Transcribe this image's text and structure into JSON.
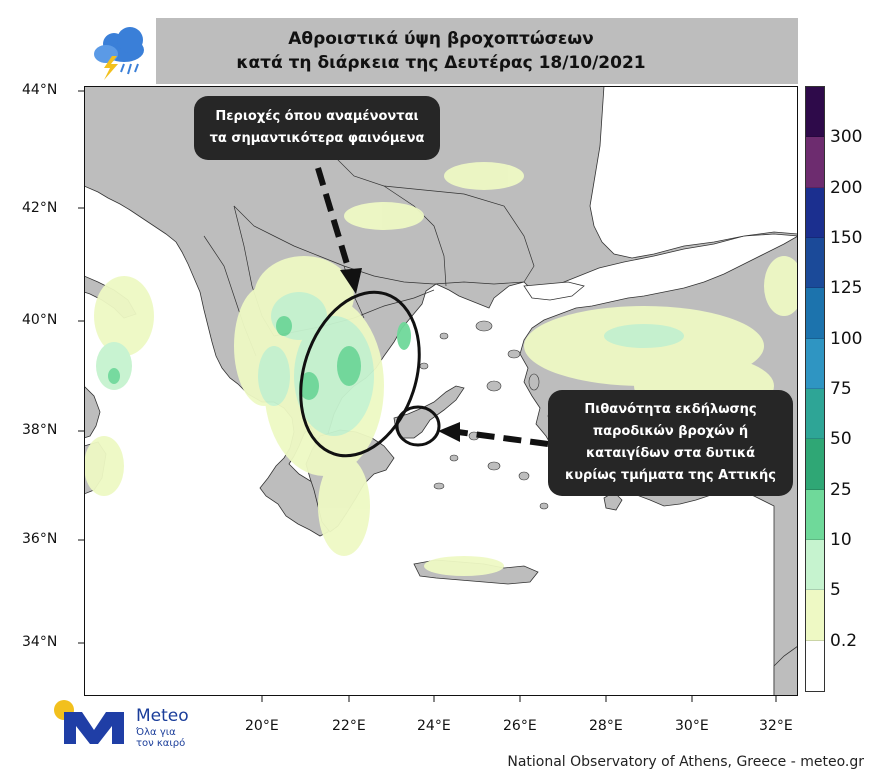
{
  "header": {
    "title_line1": "Αθροιστικά ύψη βροχοπτώσεων",
    "title_line2": "κατά τη διάρκεια της Δευτέρας 18/10/2021",
    "icon": "rain-cloud-lightning-icon"
  },
  "map": {
    "lat_labels": [
      "44°N",
      "42°N",
      "40°N",
      "38°N",
      "36°N",
      "34°N"
    ],
    "lon_labels": [
      "20°E",
      "22°E",
      "24°E",
      "26°E",
      "28°E",
      "30°E",
      "32°E"
    ],
    "land_color": "#bdbdbd",
    "sea_color": "#ffffff"
  },
  "legend": {
    "labels": [
      "300",
      "200",
      "150",
      "125",
      "100",
      "75",
      "50",
      "25",
      "10",
      "5",
      "0.2"
    ],
    "colors": [
      "#2e0a4a",
      "#6d2c6f",
      "#1b2f8f",
      "#1b4a99",
      "#1c73ad",
      "#2f95c2",
      "#2ea596",
      "#2fa775",
      "#6fd99a",
      "#c6f3cf",
      "#eef9c4",
      "#ffffff"
    ]
  },
  "annotations": {
    "callout1_line1": "Περιοχές όπου αναμένονται",
    "callout1_line2": "τα σημαντικότερα φαινόμενα",
    "callout2_line1": "Πιθανότητα εκδήλωσης",
    "callout2_line2": "παροδικών βροχών ή",
    "callout2_line3": "καταιγίδων στα δυτικά",
    "callout2_line4": "κυρίως τμήματα της Αττικής"
  },
  "logo": {
    "name": "Meteo",
    "tagline_line1": "Όλα για",
    "tagline_line2": "τον καιρό"
  },
  "footer": {
    "credit": "National Observatory of Athens, Greece - meteo.gr"
  }
}
